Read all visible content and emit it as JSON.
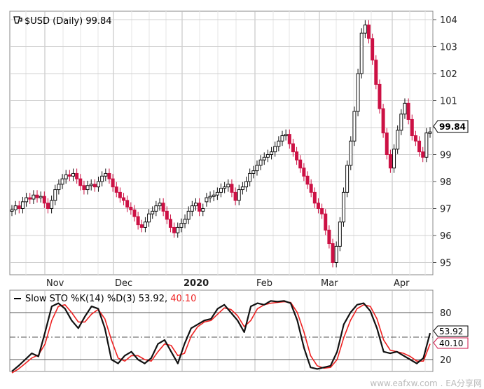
{
  "colors": {
    "up": "#111111",
    "down": "#cc1144",
    "k_line": "#111111",
    "d_line": "#ee2222",
    "grid": "#d0d0d0",
    "frame": "#888888"
  },
  "price_panel": {
    "legend_icon": "cup-icon",
    "title": "$USD (Daily) 99.84",
    "last_badge": "99.84",
    "y_ticks": [
      "104",
      "103",
      "102",
      "101",
      "100",
      "99",
      "98",
      "97",
      "96",
      "95"
    ],
    "x_ticks": [
      "Nov",
      "Dec",
      "2020",
      "Feb",
      "Mar",
      "Apr"
    ]
  },
  "stoch_panel": {
    "title_prefix": "Slow STO %K(14) %D(3) 53.92,",
    "title_d_value": "40.10",
    "y_ticks": [
      "80",
      "20"
    ],
    "k_badge": "53.92",
    "d_badge": "40.10"
  },
  "watermark": "www.eafxw.com . EA分享网",
  "chart_data": [
    {
      "type": "candlestick",
      "title": "$USD (Daily) 99.84",
      "ylim": [
        94.3,
        104.7
      ],
      "x_labels": [
        "Nov",
        "Dec",
        "2020",
        "Feb",
        "Mar",
        "Apr"
      ],
      "close": [
        96.95,
        97.1,
        97.0,
        97.25,
        97.4,
        97.35,
        97.5,
        97.4,
        97.45,
        97.2,
        97.0,
        97.3,
        97.7,
        97.9,
        98.1,
        98.25,
        98.2,
        98.3,
        98.1,
        97.85,
        97.7,
        97.85,
        97.9,
        97.8,
        98.0,
        98.2,
        98.3,
        98.1,
        97.8,
        97.6,
        97.4,
        97.3,
        97.05,
        96.95,
        96.7,
        96.4,
        96.3,
        96.5,
        96.8,
        96.9,
        97.1,
        97.2,
        96.9,
        96.6,
        96.3,
        96.1,
        96.3,
        96.45,
        96.6,
        96.9,
        97.1,
        97.2,
        96.9,
        97.0,
        97.4,
        97.45,
        97.5,
        97.6,
        97.75,
        97.8,
        97.9,
        97.6,
        97.3,
        97.7,
        97.8,
        98.0,
        98.3,
        98.4,
        98.6,
        98.8,
        98.9,
        99.0,
        99.1,
        99.3,
        99.5,
        99.7,
        99.75,
        99.4,
        99.1,
        98.8,
        98.5,
        98.2,
        97.9,
        97.6,
        97.2,
        97.0,
        96.8,
        96.2,
        95.7,
        95.0,
        95.6,
        96.5,
        97.6,
        98.6,
        99.5,
        100.6,
        102.0,
        103.5,
        103.8,
        103.3,
        102.5,
        101.6,
        100.7,
        99.8,
        99.0,
        98.5,
        99.2,
        99.9,
        100.5,
        100.9,
        100.3,
        99.7,
        99.5,
        99.1,
        98.9,
        99.8,
        99.84
      ],
      "open": [
        96.9,
        96.95,
        97.1,
        97.0,
        97.25,
        97.4,
        97.35,
        97.5,
        97.4,
        97.45,
        97.2,
        97.0,
        97.3,
        97.7,
        97.9,
        98.1,
        98.25,
        98.2,
        98.3,
        98.1,
        97.85,
        97.7,
        97.85,
        97.9,
        97.8,
        98.0,
        98.2,
        98.3,
        98.1,
        97.8,
        97.6,
        97.4,
        97.3,
        97.05,
        96.95,
        96.7,
        96.4,
        96.3,
        96.5,
        96.8,
        96.9,
        97.1,
        97.2,
        96.9,
        96.6,
        96.3,
        96.1,
        96.3,
        96.45,
        96.6,
        96.9,
        97.1,
        97.2,
        96.9,
        97.25,
        97.4,
        97.45,
        97.5,
        97.6,
        97.75,
        97.8,
        97.9,
        97.6,
        97.3,
        97.7,
        97.8,
        98.0,
        98.3,
        98.4,
        98.6,
        98.8,
        98.9,
        99.0,
        99.1,
        99.3,
        99.5,
        99.7,
        99.75,
        99.4,
        99.1,
        98.8,
        98.5,
        98.2,
        97.9,
        97.6,
        97.2,
        97.0,
        96.8,
        96.2,
        95.7,
        95.0,
        95.6,
        96.5,
        97.6,
        98.6,
        99.5,
        100.6,
        102.0,
        103.5,
        103.8,
        103.3,
        102.5,
        101.6,
        100.7,
        99.8,
        99.0,
        98.5,
        99.2,
        99.9,
        100.5,
        100.9,
        100.3,
        99.7,
        99.5,
        99.1,
        98.9,
        99.8
      ]
    },
    {
      "type": "line",
      "title": "Slow STO %K(14) %D(3) 53.92, 40.10",
      "ylim": [
        0,
        100
      ],
      "y_ticks": [
        20,
        80
      ],
      "series": [
        {
          "name": "%K",
          "values": [
            5,
            12,
            20,
            28,
            24,
            55,
            88,
            92,
            85,
            70,
            60,
            75,
            88,
            85,
            60,
            20,
            15,
            25,
            30,
            20,
            15,
            22,
            40,
            45,
            30,
            15,
            40,
            60,
            65,
            70,
            72,
            85,
            90,
            80,
            70,
            55,
            88,
            92,
            90,
            95,
            94,
            95,
            92,
            70,
            35,
            10,
            8,
            10,
            12,
            30,
            65,
            80,
            90,
            92,
            82,
            60,
            30,
            28,
            30,
            25,
            20,
            15,
            22,
            53.92
          ]
        },
        {
          "name": "%D",
          "values": [
            3,
            8,
            15,
            22,
            26,
            40,
            70,
            88,
            90,
            80,
            68,
            68,
            78,
            84,
            72,
            45,
            22,
            18,
            25,
            25,
            20,
            18,
            30,
            40,
            38,
            25,
            28,
            50,
            62,
            68,
            70,
            78,
            86,
            84,
            76,
            62,
            70,
            85,
            90,
            92,
            93,
            94,
            93,
            80,
            55,
            25,
            12,
            9,
            10,
            20,
            48,
            70,
            85,
            90,
            88,
            72,
            45,
            32,
            30,
            28,
            24,
            18,
            18,
            40.1
          ]
        }
      ]
    }
  ]
}
